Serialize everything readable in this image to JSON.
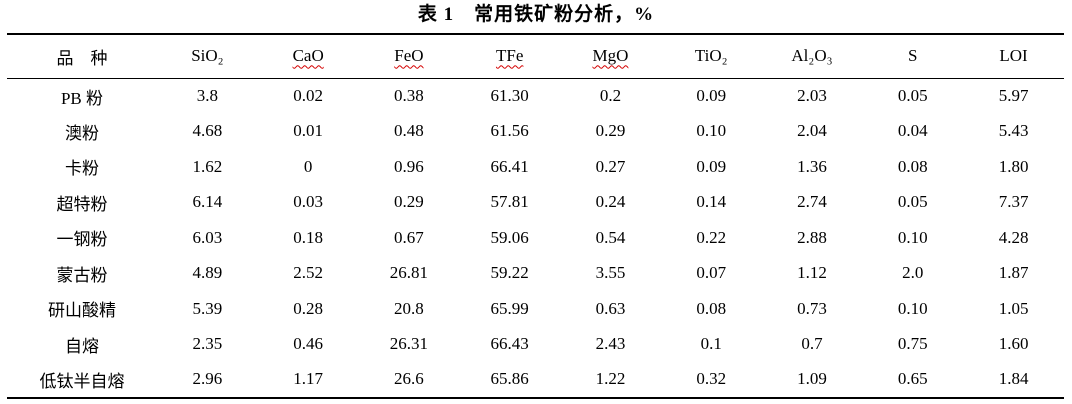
{
  "title": "表 1　常用铁矿粉分析，%",
  "colors": {
    "text": "#000000",
    "table_rule": "#000000",
    "spellcheck_underline": "#d40000"
  },
  "table": {
    "columns": [
      {
        "label": "品　种",
        "spellcheck_underline": false
      },
      {
        "label": "SiO₂",
        "spellcheck_underline": false
      },
      {
        "label": "CaO",
        "spellcheck_underline": true
      },
      {
        "label": "FeO",
        "spellcheck_underline": true
      },
      {
        "label": "TFe",
        "spellcheck_underline": true
      },
      {
        "label": "MgO",
        "spellcheck_underline": true
      },
      {
        "label": "TiO₂",
        "spellcheck_underline": false
      },
      {
        "label": "Al₂O₃",
        "spellcheck_underline": false
      },
      {
        "label": "S",
        "spellcheck_underline": false
      },
      {
        "label": "LOI",
        "spellcheck_underline": false
      }
    ],
    "rows": [
      {
        "name": "PB 粉",
        "values": [
          "3.8",
          "0.02",
          "0.38",
          "61.30",
          "0.2",
          "0.09",
          "2.03",
          "0.05",
          "5.97"
        ]
      },
      {
        "name": "澳粉",
        "values": [
          "4.68",
          "0.01",
          "0.48",
          "61.56",
          "0.29",
          "0.10",
          "2.04",
          "0.04",
          "5.43"
        ]
      },
      {
        "name": "卡粉",
        "values": [
          "1.62",
          "0",
          "0.96",
          "66.41",
          "0.27",
          "0.09",
          "1.36",
          "0.08",
          "1.80"
        ]
      },
      {
        "name": "超特粉",
        "values": [
          "6.14",
          "0.03",
          "0.29",
          "57.81",
          "0.24",
          "0.14",
          "2.74",
          "0.05",
          "7.37"
        ]
      },
      {
        "name": "一钢粉",
        "values": [
          "6.03",
          "0.18",
          "0.67",
          "59.06",
          "0.54",
          "0.22",
          "2.88",
          "0.10",
          "4.28"
        ]
      },
      {
        "name": "蒙古粉",
        "values": [
          "4.89",
          "2.52",
          "26.81",
          "59.22",
          "3.55",
          "0.07",
          "1.12",
          "2.0",
          "1.87"
        ]
      },
      {
        "name": "研山酸精",
        "values": [
          "5.39",
          "0.28",
          "20.8",
          "65.99",
          "0.63",
          "0.08",
          "0.73",
          "0.10",
          "1.05"
        ]
      },
      {
        "name": "自熔",
        "values": [
          "2.35",
          "0.46",
          "26.31",
          "66.43",
          "2.43",
          "0.1",
          "0.7",
          "0.75",
          "1.60"
        ]
      },
      {
        "name": "低钛半自熔",
        "values": [
          "2.96",
          "1.17",
          "26.6",
          "65.86",
          "1.22",
          "0.32",
          "1.09",
          "0.65",
          "1.84"
        ]
      }
    ]
  }
}
